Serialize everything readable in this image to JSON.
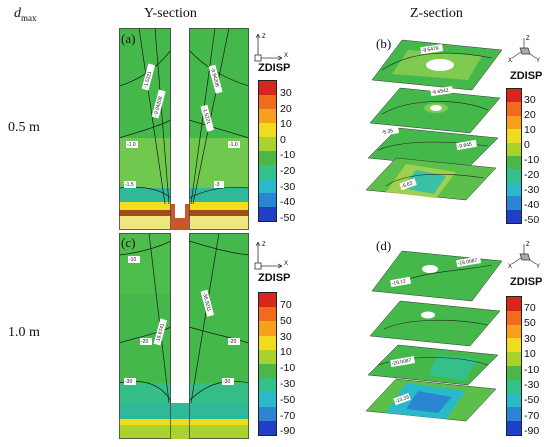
{
  "headers": {
    "dmax": "d",
    "dmax_sub": "max",
    "y_section": "Y-section",
    "z_section": "Z-section"
  },
  "rows": [
    {
      "label": "0.5 m",
      "panel_y": "(a)",
      "panel_z": "(b)",
      "legend_title": "ZDISP",
      "ticks": [
        "30",
        "20",
        "10",
        "0",
        "-10",
        "-20",
        "-30",
        "-40",
        "-50"
      ]
    },
    {
      "label": "1.0 m",
      "panel_y": "(c)",
      "panel_z": "(d)",
      "legend_title": "ZDISP",
      "ticks": [
        "70",
        "50",
        "30",
        "10",
        "-10",
        "-30",
        "-50",
        "-70",
        "-90"
      ]
    }
  ],
  "axes": {
    "z": "Z",
    "x": "X",
    "y": "Y"
  },
  "contour_labels": {
    "a": [
      "-1.5221",
      "-9.94208",
      "-3.35",
      "-1.0",
      "-5",
      "-1.0",
      "-1.5",
      "-3",
      "-14"
    ],
    "c": [
      "-10",
      "-20",
      "-30",
      "-19.6741",
      "-36.9211",
      "-30",
      "-20",
      "-10"
    ],
    "b": [
      "-5.35",
      "-8.5479",
      "-6.6542",
      "-9.845",
      "-5.63"
    ],
    "d": [
      "-18.0087",
      "-19.12",
      "-20.0087",
      "-13.33"
    ]
  },
  "colorbar_colors": [
    "#d7261e",
    "#f26a1f",
    "#f7a01e",
    "#f0dc1e",
    "#a9d22c",
    "#4cb748",
    "#34c08a",
    "#2ab9c8",
    "#2a86d2",
    "#1e3fc8"
  ]
}
